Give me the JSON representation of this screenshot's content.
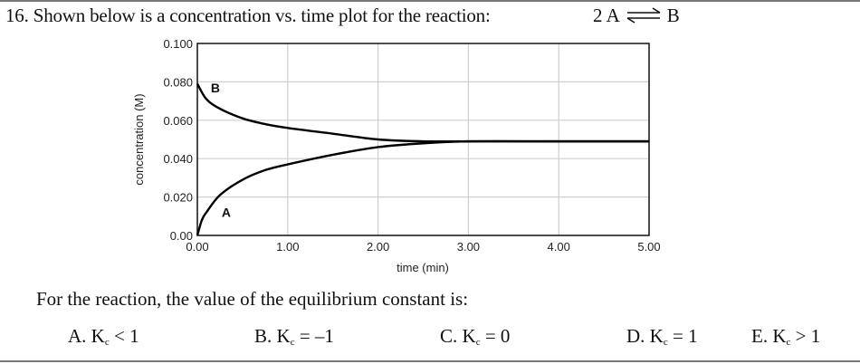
{
  "question": {
    "number": "16.",
    "text": "Shown below is a concentration vs. time plot for the reaction:",
    "reaction_left": "2 A",
    "reaction_arrow": "equilibrium-arrows",
    "reaction_right": "B"
  },
  "prompt": "For the reaction, the value of the equilibrium constant is:",
  "options": [
    {
      "letter": "A.",
      "k": "K",
      "sub": "c",
      "rel": "< 1"
    },
    {
      "letter": "B.",
      "k": "K",
      "sub": "c",
      "rel": "= –1"
    },
    {
      "letter": "C.",
      "k": "K",
      "sub": "c",
      "rel": "= 0"
    },
    {
      "letter": "D.",
      "k": "K",
      "sub": "c",
      "rel": "= 1"
    },
    {
      "letter": "E.",
      "k": "K",
      "sub": "c",
      "rel": "> 1"
    }
  ],
  "chart_data": {
    "type": "line",
    "title": "",
    "xlabel": "time (min)",
    "ylabel": "concentration (M)",
    "xlim": [
      0,
      5
    ],
    "ylim": [
      0,
      0.1
    ],
    "grid": true,
    "x_ticks": [
      "0.00",
      "1.00",
      "2.00",
      "3.00",
      "4.00",
      "5.00"
    ],
    "y_ticks": [
      "0.00",
      "0.020",
      "0.040",
      "0.060",
      "0.080",
      "0.100"
    ],
    "series": [
      {
        "name": "B",
        "x": [
          0,
          0.1,
          0.25,
          0.5,
          0.75,
          1.0,
          1.5,
          2.0,
          2.5,
          3.0,
          4.0,
          5.0
        ],
        "values": [
          0.079,
          0.071,
          0.066,
          0.061,
          0.058,
          0.056,
          0.053,
          0.05,
          0.049,
          0.049,
          0.049,
          0.049
        ]
      },
      {
        "name": "A",
        "x": [
          0,
          0.05,
          0.1,
          0.25,
          0.5,
          0.75,
          1.0,
          1.5,
          2.0,
          2.5,
          3.0,
          4.0,
          5.0
        ],
        "values": [
          0.0,
          0.008,
          0.012,
          0.021,
          0.029,
          0.034,
          0.037,
          0.042,
          0.046,
          0.048,
          0.049,
          0.049,
          0.049
        ]
      }
    ],
    "annotations": [
      {
        "text": "B",
        "x": 0.2,
        "y": 0.077
      },
      {
        "text": "A",
        "x": 0.32,
        "y": 0.012
      }
    ]
  }
}
